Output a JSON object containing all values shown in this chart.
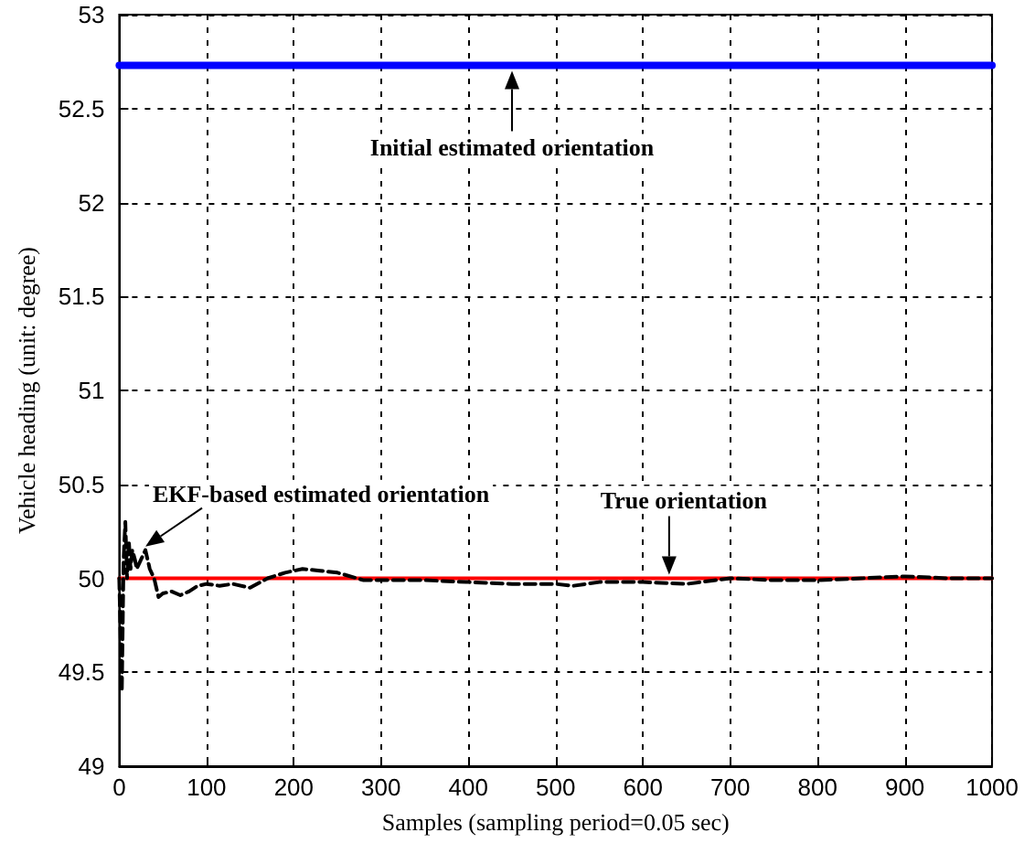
{
  "chart_data": {
    "type": "line",
    "xlabel": "Samples (sampling period=0.05 sec)",
    "ylabel": "Vehicle heading (unit: degree)",
    "xlim": [
      0,
      1000
    ],
    "xticks": [
      0,
      100,
      200,
      300,
      400,
      500,
      600,
      700,
      800,
      900,
      1000
    ],
    "ylim": [
      49,
      53
    ],
    "yticks": [
      49,
      49.5,
      50,
      50.5,
      51,
      51.5,
      52,
      52.5,
      53
    ],
    "grid": true,
    "marker": "none",
    "series": [
      {
        "color": "#0000ff",
        "line_style": "solid",
        "x": [
          0,
          1000
        ],
        "values": [
          52.73,
          52.73
        ]
      },
      {
        "color": "#ff0000",
        "line_style": "solid",
        "x": [
          0,
          1000
        ],
        "values": [
          50,
          50
        ]
      },
      {
        "color": "#000000",
        "line_style": "dashed",
        "x": [
          0,
          2,
          3,
          5,
          7,
          9,
          11,
          13,
          15,
          18,
          20,
          25,
          30,
          35,
          40,
          45,
          50,
          60,
          70,
          80,
          90,
          100,
          115,
          130,
          150,
          170,
          190,
          210,
          230,
          250,
          280,
          300,
          350,
          400,
          450,
          500,
          520,
          550,
          600,
          650,
          700,
          750,
          800,
          850,
          900,
          950,
          1000
        ],
        "values": [
          50.0,
          49.6,
          49.4,
          50.1,
          50.3,
          50.0,
          50.2,
          50.05,
          50.15,
          50.1,
          50.05,
          50.1,
          50.15,
          50.05,
          50.0,
          49.9,
          49.92,
          49.93,
          49.91,
          49.93,
          49.96,
          49.97,
          49.96,
          49.97,
          49.95,
          50.0,
          50.03,
          50.05,
          50.04,
          50.03,
          49.99,
          49.99,
          49.99,
          49.98,
          49.97,
          49.97,
          49.96,
          49.98,
          49.98,
          49.97,
          50.0,
          49.99,
          49.99,
          50.0,
          50.01,
          50.0,
          50.0
        ]
      }
    ],
    "annotations": [
      {
        "text": "Initial estimated orientation",
        "x": 450,
        "y": 52.73
      },
      {
        "text": "True orientation",
        "x": 630,
        "y": 50
      },
      {
        "text": "EKF-based estimated orientation",
        "x": 30,
        "y": 50.15
      }
    ]
  }
}
